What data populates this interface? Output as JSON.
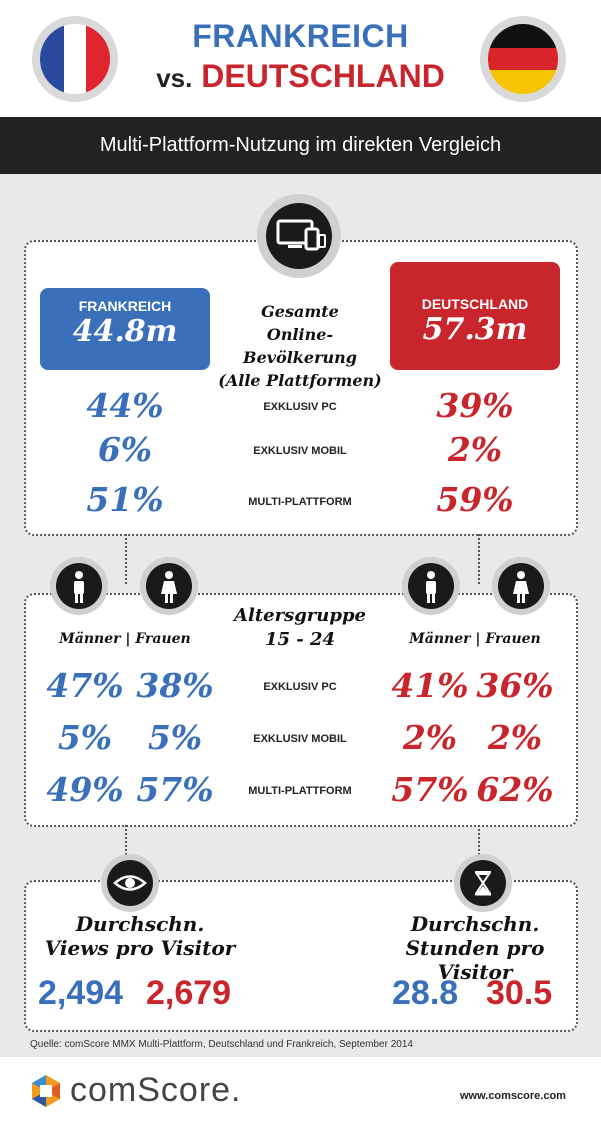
{
  "header": {
    "title_line1": "FRANKREICH",
    "vs": "vs.",
    "title_line2": "DEUTSCHLAND",
    "subtitle": "Multi-Plattform-Nutzung im direkten Vergleich"
  },
  "colors": {
    "france_blue": "#3a6fb9",
    "germany_red": "#c9252c",
    "dark_bar": "#222222"
  },
  "population": {
    "france_label": "FRANKREICH",
    "france_value": "44.8m",
    "germany_label": "DEUTSCHLAND",
    "germany_value": "57.3m",
    "center_line1": "Gesamte",
    "center_line2": "Online-Bevölkerung",
    "center_line3": "(Alle Plattformen)",
    "rows": [
      {
        "label": "EXKLUSIV PC",
        "france": "44%",
        "germany": "39%"
      },
      {
        "label": "EXKLUSIV MOBIL",
        "france": "6%",
        "germany": "2%"
      },
      {
        "label": "MULTI-PLATTFORM",
        "france": "51%",
        "germany": "59%"
      }
    ]
  },
  "age": {
    "title_line1": "Altersgruppe",
    "title_line2": "15 - 24",
    "gender_header": "Männer | Frauen",
    "rows": [
      {
        "label": "EXKLUSIV PC",
        "fr_m": "47%",
        "fr_f": "38%",
        "de_m": "41%",
        "de_f": "36%"
      },
      {
        "label": "EXKLUSIV MOBIL",
        "fr_m": "5%",
        "fr_f": "5%",
        "de_m": "2%",
        "de_f": "2%"
      },
      {
        "label": "MULTI-PLATTFORM",
        "fr_m": "49%",
        "fr_f": "57%",
        "de_m": "57%",
        "de_f": "62%"
      }
    ]
  },
  "stats": {
    "views_line1": "Durchschn.",
    "views_line2": "Views pro Visitor",
    "views_fr": "2,494",
    "views_de": "2,679",
    "hours_line1": "Durchschn.",
    "hours_line2": "Stunden pro Visitor",
    "hours_fr": "28.8",
    "hours_de": "30.5"
  },
  "footer": {
    "source": "Quelle: comScore MMX Multi-Plattform, Deutschland und Frankreich, September 2014",
    "brand": "comScore.",
    "url": "www.comscore.com"
  },
  "icons": [
    "france-flag-icon",
    "germany-flag-icon",
    "devices-icon",
    "male-icon",
    "female-icon",
    "eye-icon",
    "hourglass-icon",
    "comscore-logo-icon"
  ]
}
